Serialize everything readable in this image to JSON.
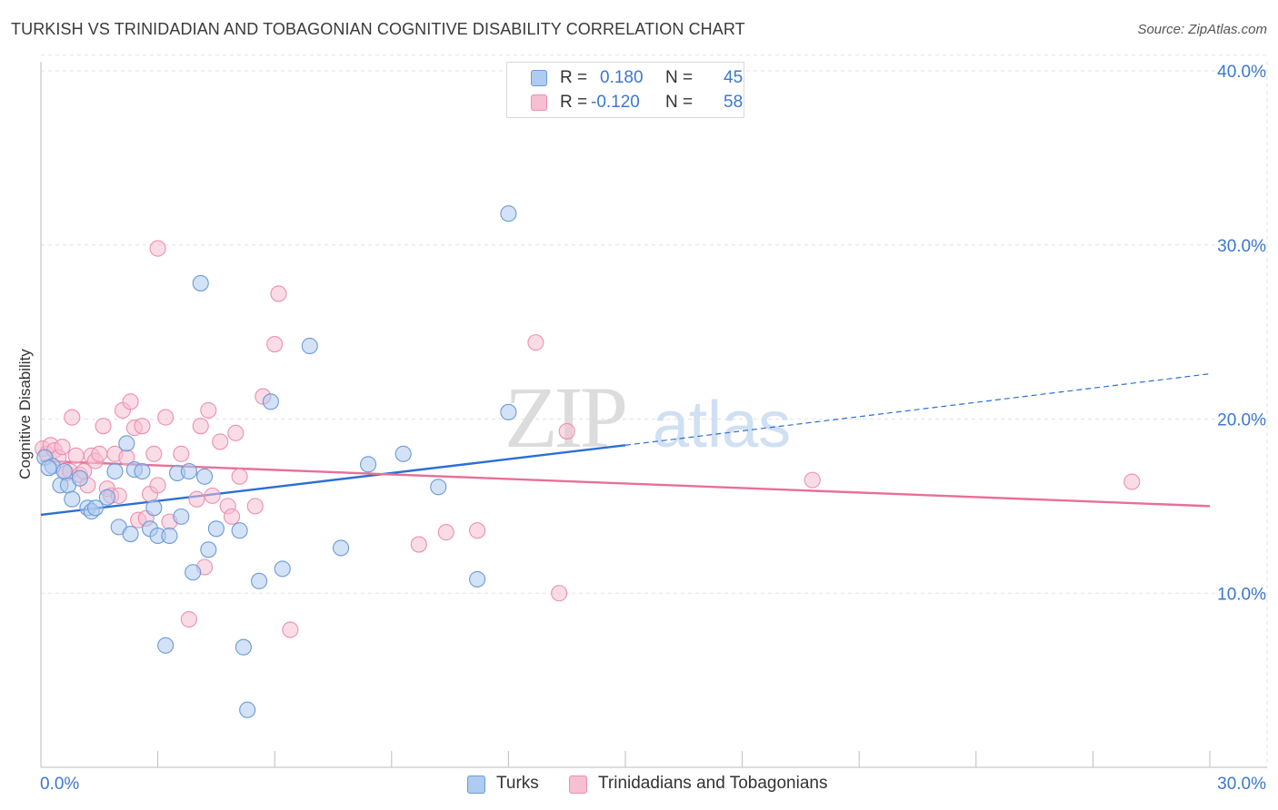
{
  "header": {
    "title": "TURKISH VS TRINIDADIAN AND TOBAGONIAN COGNITIVE DISABILITY CORRELATION CHART",
    "source": "Source: ZipAtlas.com"
  },
  "legend_top": {
    "rows": [
      {
        "r_label": "R =",
        "r_value": "0.180",
        "n_label": "N =",
        "n_value": "45"
      },
      {
        "r_label": "R =",
        "r_value": "-0.120",
        "n_label": "N =",
        "n_value": "58"
      }
    ]
  },
  "watermark": {
    "zip": "ZIP",
    "atlas": "atlas"
  },
  "colors": {
    "turks_fill": "#aecbf0",
    "turks_stroke": "#6a9bd8",
    "turks_line": "#2b6fd4",
    "tri_fill": "#f6bfd2",
    "tri_stroke": "#ee8fae",
    "tri_line": "#e86f99",
    "tick_text": "#3b78d0",
    "grid": "#e3e3e3"
  },
  "chart_data": {
    "type": "scatter",
    "title": "TURKISH VS TRINIDADIAN AND TOBAGONIAN COGNITIVE DISABILITY CORRELATION CHART",
    "xlabel": "",
    "ylabel": "Cognitive Disability",
    "xlim": [
      0,
      30
    ],
    "ylim": [
      0,
      40
    ],
    "x_tick_labels": [
      "0.0%",
      "30.0%"
    ],
    "y_ticks": [
      10,
      20,
      30,
      40
    ],
    "y_tick_labels": [
      "10.0%",
      "20.0%",
      "30.0%",
      "40.0%"
    ],
    "grid": true,
    "legend_position": "bottom",
    "series": [
      {
        "name": "Turks",
        "r": 0.18,
        "n": 45,
        "trend": {
          "x0": 0,
          "y0": 14.5,
          "x1": 15,
          "y1": 18.5,
          "dashed_to_x": 30,
          "dashed_to_y": 22.6
        },
        "points": [
          [
            0.1,
            17.8
          ],
          [
            0.3,
            17.3
          ],
          [
            0.5,
            16.2
          ],
          [
            0.7,
            16.2
          ],
          [
            0.8,
            15.4
          ],
          [
            1.0,
            16.6
          ],
          [
            1.2,
            14.9
          ],
          [
            1.3,
            14.7
          ],
          [
            1.4,
            14.9
          ],
          [
            1.7,
            15.5
          ],
          [
            1.9,
            17.0
          ],
          [
            2.0,
            13.8
          ],
          [
            2.2,
            18.6
          ],
          [
            2.3,
            13.4
          ],
          [
            2.4,
            17.1
          ],
          [
            2.6,
            17.0
          ],
          [
            2.8,
            13.7
          ],
          [
            2.9,
            14.9
          ],
          [
            3.0,
            13.3
          ],
          [
            3.2,
            7.0
          ],
          [
            3.3,
            13.3
          ],
          [
            3.5,
            16.9
          ],
          [
            3.6,
            14.4
          ],
          [
            3.8,
            17.0
          ],
          [
            3.9,
            11.2
          ],
          [
            4.1,
            27.8
          ],
          [
            4.2,
            16.7
          ],
          [
            4.3,
            12.5
          ],
          [
            4.5,
            13.7
          ],
          [
            5.1,
            13.6
          ],
          [
            5.2,
            6.9
          ],
          [
            5.3,
            3.3
          ],
          [
            5.6,
            10.7
          ],
          [
            5.9,
            21.0
          ],
          [
            6.2,
            11.4
          ],
          [
            6.9,
            24.2
          ],
          [
            7.7,
            12.6
          ],
          [
            8.4,
            17.4
          ],
          [
            9.3,
            18.0
          ],
          [
            10.2,
            16.1
          ],
          [
            11.2,
            10.8
          ],
          [
            12.0,
            20.4
          ],
          [
            12.0,
            31.8
          ],
          [
            0.2,
            17.2
          ],
          [
            0.6,
            17.0
          ]
        ]
      },
      {
        "name": "Trinidadians and Tobagonians",
        "r": -0.12,
        "n": 58,
        "trend": {
          "x0": 0,
          "y0": 17.6,
          "x1": 30,
          "y1": 15.0
        },
        "points": [
          [
            0.05,
            18.3
          ],
          [
            0.15,
            18.0
          ],
          [
            0.25,
            18.5
          ],
          [
            0.35,
            18.2
          ],
          [
            0.45,
            17.8
          ],
          [
            0.55,
            18.4
          ],
          [
            0.65,
            16.9
          ],
          [
            0.75,
            17.0
          ],
          [
            0.8,
            20.1
          ],
          [
            0.9,
            17.9
          ],
          [
            1.0,
            16.8
          ],
          [
            1.1,
            17.0
          ],
          [
            1.2,
            16.2
          ],
          [
            1.3,
            17.9
          ],
          [
            1.4,
            17.6
          ],
          [
            1.5,
            18.0
          ],
          [
            1.6,
            19.6
          ],
          [
            1.7,
            16.0
          ],
          [
            1.8,
            15.6
          ],
          [
            1.9,
            18.0
          ],
          [
            2.0,
            15.6
          ],
          [
            2.1,
            20.5
          ],
          [
            2.2,
            17.8
          ],
          [
            2.3,
            21.0
          ],
          [
            2.4,
            19.5
          ],
          [
            2.5,
            14.2
          ],
          [
            2.6,
            19.6
          ],
          [
            2.7,
            14.3
          ],
          [
            2.8,
            15.7
          ],
          [
            2.9,
            18.0
          ],
          [
            3.0,
            16.2
          ],
          [
            3.0,
            29.8
          ],
          [
            3.2,
            20.1
          ],
          [
            3.3,
            14.1
          ],
          [
            3.6,
            18.0
          ],
          [
            3.8,
            8.5
          ],
          [
            4.0,
            15.4
          ],
          [
            4.1,
            19.6
          ],
          [
            4.2,
            11.5
          ],
          [
            4.3,
            20.5
          ],
          [
            4.4,
            15.6
          ],
          [
            4.6,
            18.7
          ],
          [
            4.8,
            15.0
          ],
          [
            4.9,
            14.4
          ],
          [
            5.0,
            19.2
          ],
          [
            5.1,
            16.7
          ],
          [
            5.5,
            15.0
          ],
          [
            5.7,
            21.3
          ],
          [
            6.0,
            24.3
          ],
          [
            6.1,
            27.2
          ],
          [
            6.4,
            7.9
          ],
          [
            9.7,
            12.8
          ],
          [
            10.4,
            13.5
          ],
          [
            11.2,
            13.6
          ],
          [
            12.7,
            24.4
          ],
          [
            13.3,
            10.0
          ],
          [
            13.5,
            19.3
          ],
          [
            19.8,
            16.5
          ]
        ],
        "extra_points": [
          [
            28.0,
            16.4
          ]
        ]
      }
    ]
  },
  "bottom_legend": {
    "items": [
      {
        "label": "Turks"
      },
      {
        "label": "Trinidadians and Tobagonians"
      }
    ]
  }
}
